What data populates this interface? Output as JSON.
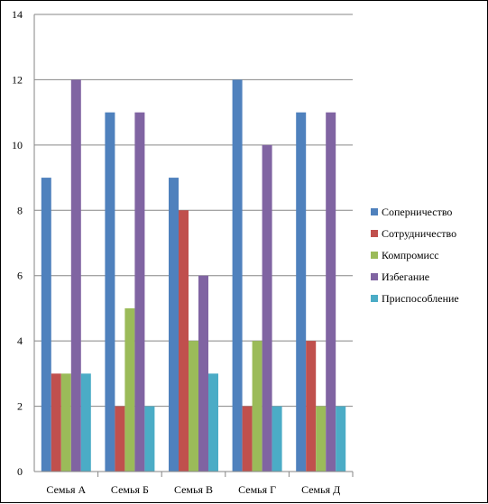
{
  "chart_data": {
    "type": "bar",
    "categories": [
      "Семья А",
      "Семья Б",
      "Семья В",
      "Семья Г",
      "Семья Д"
    ],
    "series": [
      {
        "name": "Соперничество",
        "values": [
          9,
          11,
          9,
          12,
          11
        ],
        "color": "#4F81BD"
      },
      {
        "name": "Сотрудничество",
        "values": [
          3,
          2,
          8,
          2,
          4
        ],
        "color": "#C0504D"
      },
      {
        "name": "Компромисс",
        "values": [
          3,
          5,
          4,
          4,
          2
        ],
        "color": "#9BBB59"
      },
      {
        "name": "Избегание",
        "values": [
          12,
          11,
          6,
          10,
          11
        ],
        "color": "#8064A2"
      },
      {
        "name": "Приспособление",
        "values": [
          3,
          2,
          3,
          2,
          2
        ],
        "color": "#4BACC6"
      }
    ],
    "title": "",
    "xlabel": "",
    "ylabel": "",
    "ylim": [
      0,
      14
    ],
    "yticks": [
      "0",
      "2",
      "4",
      "6",
      "8",
      "10",
      "12",
      "14"
    ],
    "grid": true,
    "legend": "right"
  }
}
